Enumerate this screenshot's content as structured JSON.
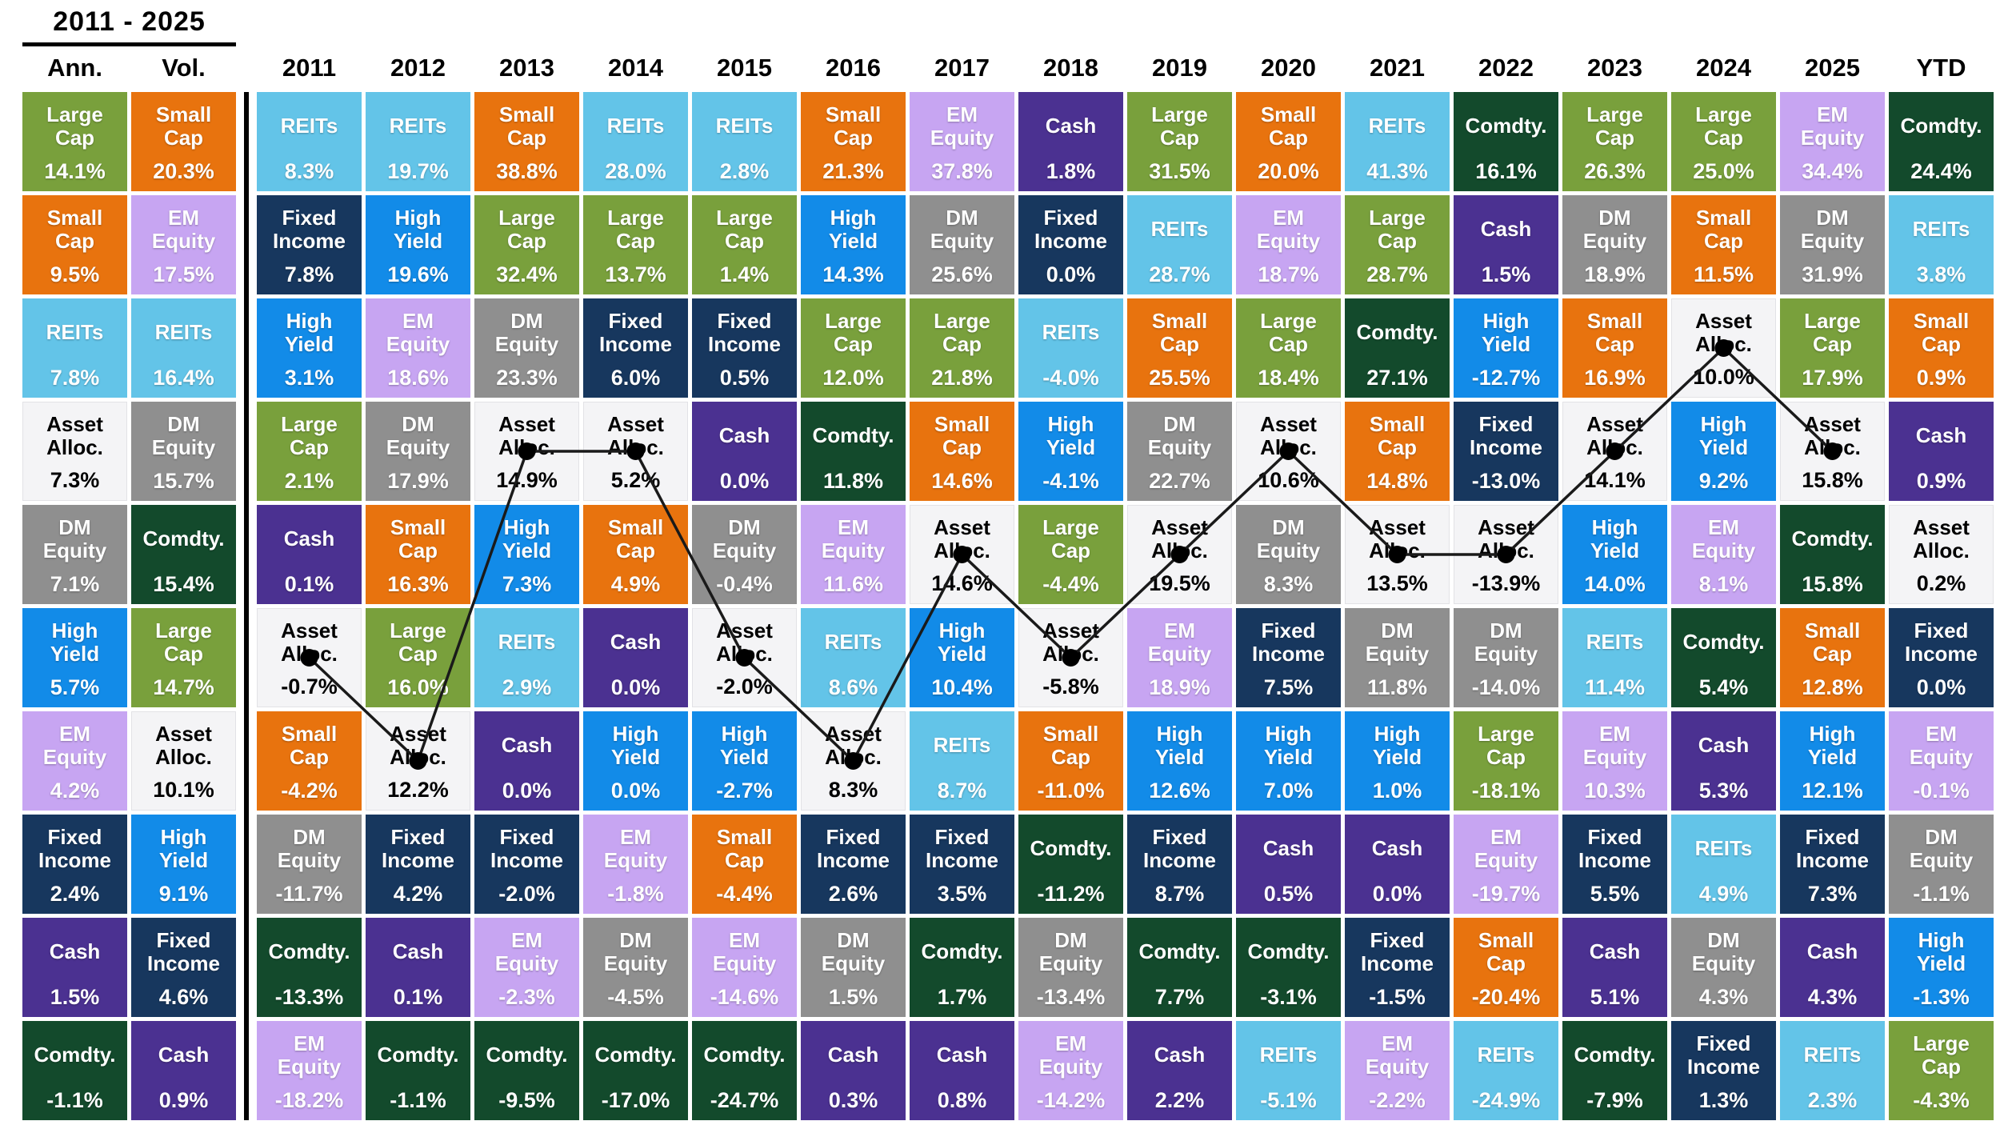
{
  "chart_data": {
    "type": "table",
    "subtype": "asset-class-returns-quilt",
    "title": "2011 - 2025",
    "grid": "off",
    "legend_position": "none",
    "asset_classes": {
      "large_cap": {
        "label": "Large Cap",
        "color": "#79A03C",
        "text": "#FFFFFF"
      },
      "small_cap": {
        "label": "Small Cap",
        "color": "#E8730E",
        "text": "#FFFFFF"
      },
      "reits": {
        "label": "REITs",
        "color": "#63C4E8",
        "text": "#FFFFFF"
      },
      "em_equity": {
        "label": "EM Equity",
        "color": "#C7A5F2",
        "text": "#FFFFFF"
      },
      "dm_equity": {
        "label": "DM Equity",
        "color": "#8F8F8F",
        "text": "#FFFFFF"
      },
      "comdty": {
        "label": "Comdty.",
        "color": "#134A2C",
        "text": "#FFFFFF"
      },
      "fixed_income": {
        "label": "Fixed Income",
        "color": "#17375E",
        "text": "#FFFFFF"
      },
      "high_yield": {
        "label": "High Yield",
        "color": "#128BE8",
        "text": "#FFFFFF"
      },
      "cash": {
        "label": "Cash",
        "color": "#4B3191",
        "text": "#FFFFFF"
      },
      "asset_alloc": {
        "label": "Asset Alloc.",
        "color": "#F4F4F6",
        "text": "#000000"
      }
    },
    "columns": [
      {
        "key": "ann",
        "header": "Ann.",
        "dot": false,
        "cells": [
          [
            "large_cap",
            "14.1%"
          ],
          [
            "small_cap",
            "9.5%"
          ],
          [
            "reits",
            "7.8%"
          ],
          [
            "asset_alloc",
            "7.3%"
          ],
          [
            "dm_equity",
            "7.1%"
          ],
          [
            "high_yield",
            "5.7%"
          ],
          [
            "em_equity",
            "4.2%"
          ],
          [
            "fixed_income",
            "2.4%"
          ],
          [
            "cash",
            "1.5%"
          ],
          [
            "comdty",
            "-1.1%"
          ]
        ]
      },
      {
        "key": "vol",
        "header": "Vol.",
        "dot": false,
        "cells": [
          [
            "small_cap",
            "20.3%"
          ],
          [
            "em_equity",
            "17.5%"
          ],
          [
            "reits",
            "16.4%"
          ],
          [
            "dm_equity",
            "15.7%"
          ],
          [
            "comdty",
            "15.4%"
          ],
          [
            "large_cap",
            "14.7%"
          ],
          [
            "asset_alloc",
            "10.1%"
          ],
          [
            "high_yield",
            "9.1%"
          ],
          [
            "fixed_income",
            "4.6%"
          ],
          [
            "cash",
            "0.9%"
          ]
        ]
      },
      {
        "key": "2011",
        "header": "2011",
        "dot": true,
        "cells": [
          [
            "reits",
            "8.3%"
          ],
          [
            "fixed_income",
            "7.8%"
          ],
          [
            "high_yield",
            "3.1%"
          ],
          [
            "large_cap",
            "2.1%"
          ],
          [
            "cash",
            "0.1%"
          ],
          [
            "asset_alloc",
            "-0.7%"
          ],
          [
            "small_cap",
            "-4.2%"
          ],
          [
            "dm_equity",
            "-11.7%"
          ],
          [
            "comdty",
            "-13.3%"
          ],
          [
            "em_equity",
            "-18.2%"
          ]
        ]
      },
      {
        "key": "2012",
        "header": "2012",
        "dot": true,
        "cells": [
          [
            "reits",
            "19.7%"
          ],
          [
            "high_yield",
            "19.6%"
          ],
          [
            "em_equity",
            "18.6%"
          ],
          [
            "dm_equity",
            "17.9%"
          ],
          [
            "small_cap",
            "16.3%"
          ],
          [
            "large_cap",
            "16.0%"
          ],
          [
            "asset_alloc",
            "12.2%"
          ],
          [
            "fixed_income",
            "4.2%"
          ],
          [
            "cash",
            "0.1%"
          ],
          [
            "comdty",
            "-1.1%"
          ]
        ]
      },
      {
        "key": "2013",
        "header": "2013",
        "dot": true,
        "cells": [
          [
            "small_cap",
            "38.8%"
          ],
          [
            "large_cap",
            "32.4%"
          ],
          [
            "dm_equity",
            "23.3%"
          ],
          [
            "asset_alloc",
            "14.9%"
          ],
          [
            "high_yield",
            "7.3%"
          ],
          [
            "reits",
            "2.9%"
          ],
          [
            "cash",
            "0.0%"
          ],
          [
            "fixed_income",
            "-2.0%"
          ],
          [
            "em_equity",
            "-2.3%"
          ],
          [
            "comdty",
            "-9.5%"
          ]
        ]
      },
      {
        "key": "2014",
        "header": "2014",
        "dot": true,
        "cells": [
          [
            "reits",
            "28.0%"
          ],
          [
            "large_cap",
            "13.7%"
          ],
          [
            "fixed_income",
            "6.0%"
          ],
          [
            "asset_alloc",
            "5.2%"
          ],
          [
            "small_cap",
            "4.9%"
          ],
          [
            "cash",
            "0.0%"
          ],
          [
            "high_yield",
            "0.0%"
          ],
          [
            "em_equity",
            "-1.8%"
          ],
          [
            "dm_equity",
            "-4.5%"
          ],
          [
            "comdty",
            "-17.0%"
          ]
        ]
      },
      {
        "key": "2015",
        "header": "2015",
        "dot": true,
        "cells": [
          [
            "reits",
            "2.8%"
          ],
          [
            "large_cap",
            "1.4%"
          ],
          [
            "fixed_income",
            "0.5%"
          ],
          [
            "cash",
            "0.0%"
          ],
          [
            "dm_equity",
            "-0.4%"
          ],
          [
            "asset_alloc",
            "-2.0%"
          ],
          [
            "high_yield",
            "-2.7%"
          ],
          [
            "small_cap",
            "-4.4%"
          ],
          [
            "em_equity",
            "-14.6%"
          ],
          [
            "comdty",
            "-24.7%"
          ]
        ]
      },
      {
        "key": "2016",
        "header": "2016",
        "dot": true,
        "cells": [
          [
            "small_cap",
            "21.3%"
          ],
          [
            "high_yield",
            "14.3%"
          ],
          [
            "large_cap",
            "12.0%"
          ],
          [
            "comdty",
            "11.8%"
          ],
          [
            "em_equity",
            "11.6%"
          ],
          [
            "reits",
            "8.6%"
          ],
          [
            "asset_alloc",
            "8.3%"
          ],
          [
            "fixed_income",
            "2.6%"
          ],
          [
            "dm_equity",
            "1.5%"
          ],
          [
            "cash",
            "0.3%"
          ]
        ]
      },
      {
        "key": "2017",
        "header": "2017",
        "dot": true,
        "cells": [
          [
            "em_equity",
            "37.8%"
          ],
          [
            "dm_equity",
            "25.6%"
          ],
          [
            "large_cap",
            "21.8%"
          ],
          [
            "small_cap",
            "14.6%"
          ],
          [
            "asset_alloc",
            "14.6%"
          ],
          [
            "high_yield",
            "10.4%"
          ],
          [
            "reits",
            "8.7%"
          ],
          [
            "fixed_income",
            "3.5%"
          ],
          [
            "comdty",
            "1.7%"
          ],
          [
            "cash",
            "0.8%"
          ]
        ]
      },
      {
        "key": "2018",
        "header": "2018",
        "dot": true,
        "cells": [
          [
            "cash",
            "1.8%"
          ],
          [
            "fixed_income",
            "0.0%"
          ],
          [
            "reits",
            "-4.0%"
          ],
          [
            "high_yield",
            "-4.1%"
          ],
          [
            "large_cap",
            "-4.4%"
          ],
          [
            "asset_alloc",
            "-5.8%"
          ],
          [
            "small_cap",
            "-11.0%"
          ],
          [
            "comdty",
            "-11.2%"
          ],
          [
            "dm_equity",
            "-13.4%"
          ],
          [
            "em_equity",
            "-14.2%"
          ]
        ]
      },
      {
        "key": "2019",
        "header": "2019",
        "dot": true,
        "cells": [
          [
            "large_cap",
            "31.5%"
          ],
          [
            "reits",
            "28.7%"
          ],
          [
            "small_cap",
            "25.5%"
          ],
          [
            "dm_equity",
            "22.7%"
          ],
          [
            "asset_alloc",
            "19.5%"
          ],
          [
            "em_equity",
            "18.9%"
          ],
          [
            "high_yield",
            "12.6%"
          ],
          [
            "fixed_income",
            "8.7%"
          ],
          [
            "comdty",
            "7.7%"
          ],
          [
            "cash",
            "2.2%"
          ]
        ]
      },
      {
        "key": "2020",
        "header": "2020",
        "dot": true,
        "cells": [
          [
            "small_cap",
            "20.0%"
          ],
          [
            "em_equity",
            "18.7%"
          ],
          [
            "large_cap",
            "18.4%"
          ],
          [
            "asset_alloc",
            "10.6%"
          ],
          [
            "dm_equity",
            "8.3%"
          ],
          [
            "fixed_income",
            "7.5%"
          ],
          [
            "high_yield",
            "7.0%"
          ],
          [
            "cash",
            "0.5%"
          ],
          [
            "comdty",
            "-3.1%"
          ],
          [
            "reits",
            "-5.1%"
          ]
        ]
      },
      {
        "key": "2021",
        "header": "2021",
        "dot": true,
        "cells": [
          [
            "reits",
            "41.3%"
          ],
          [
            "large_cap",
            "28.7%"
          ],
          [
            "comdty",
            "27.1%"
          ],
          [
            "small_cap",
            "14.8%"
          ],
          [
            "asset_alloc",
            "13.5%"
          ],
          [
            "dm_equity",
            "11.8%"
          ],
          [
            "high_yield",
            "1.0%"
          ],
          [
            "cash",
            "0.0%"
          ],
          [
            "fixed_income",
            "-1.5%"
          ],
          [
            "em_equity",
            "-2.2%"
          ]
        ]
      },
      {
        "key": "2022",
        "header": "2022",
        "dot": true,
        "cells": [
          [
            "comdty",
            "16.1%"
          ],
          [
            "cash",
            "1.5%"
          ],
          [
            "high_yield",
            "-12.7%"
          ],
          [
            "fixed_income",
            "-13.0%"
          ],
          [
            "asset_alloc",
            "-13.9%"
          ],
          [
            "dm_equity",
            "-14.0%"
          ],
          [
            "large_cap",
            "-18.1%"
          ],
          [
            "em_equity",
            "-19.7%"
          ],
          [
            "small_cap",
            "-20.4%"
          ],
          [
            "reits",
            "-24.9%"
          ]
        ]
      },
      {
        "key": "2023",
        "header": "2023",
        "dot": true,
        "cells": [
          [
            "large_cap",
            "26.3%"
          ],
          [
            "dm_equity",
            "18.9%"
          ],
          [
            "small_cap",
            "16.9%"
          ],
          [
            "asset_alloc",
            "14.1%"
          ],
          [
            "high_yield",
            "14.0%"
          ],
          [
            "reits",
            "11.4%"
          ],
          [
            "em_equity",
            "10.3%"
          ],
          [
            "fixed_income",
            "5.5%"
          ],
          [
            "cash",
            "5.1%"
          ],
          [
            "comdty",
            "-7.9%"
          ]
        ]
      },
      {
        "key": "2024",
        "header": "2024",
        "dot": true,
        "cells": [
          [
            "large_cap",
            "25.0%"
          ],
          [
            "small_cap",
            "11.5%"
          ],
          [
            "asset_alloc",
            "10.0%"
          ],
          [
            "high_yield",
            "9.2%"
          ],
          [
            "em_equity",
            "8.1%"
          ],
          [
            "comdty",
            "5.4%"
          ],
          [
            "cash",
            "5.3%"
          ],
          [
            "reits",
            "4.9%"
          ],
          [
            "dm_equity",
            "4.3%"
          ],
          [
            "fixed_income",
            "1.3%"
          ]
        ]
      },
      {
        "key": "2025",
        "header": "2025",
        "dot": true,
        "cells": [
          [
            "em_equity",
            "34.4%"
          ],
          [
            "dm_equity",
            "31.9%"
          ],
          [
            "large_cap",
            "17.9%"
          ],
          [
            "asset_alloc",
            "15.8%"
          ],
          [
            "comdty",
            "15.8%"
          ],
          [
            "small_cap",
            "12.8%"
          ],
          [
            "high_yield",
            "12.1%"
          ],
          [
            "fixed_income",
            "7.3%"
          ],
          [
            "cash",
            "4.3%"
          ],
          [
            "reits",
            "2.3%"
          ]
        ]
      },
      {
        "key": "ytd",
        "header": "YTD",
        "dot": false,
        "cells": [
          [
            "comdty",
            "24.4%"
          ],
          [
            "reits",
            "3.8%"
          ],
          [
            "small_cap",
            "0.9%"
          ],
          [
            "cash",
            "0.9%"
          ],
          [
            "asset_alloc",
            "0.2%"
          ],
          [
            "fixed_income",
            "0.0%"
          ],
          [
            "em_equity",
            "-0.1%"
          ],
          [
            "dm_equity",
            "-1.1%"
          ],
          [
            "high_yield",
            "-1.3%"
          ],
          [
            "large_cap",
            "-4.3%"
          ]
        ]
      }
    ],
    "line_overlay": {
      "tracks_asset": "asset_alloc",
      "label": "Asset Alloc. path across years",
      "color": "#1A1A1A",
      "years": [
        "2011",
        "2012",
        "2013",
        "2014",
        "2015",
        "2016",
        "2017",
        "2018",
        "2019",
        "2020",
        "2021",
        "2022",
        "2023",
        "2024",
        "2025"
      ]
    }
  }
}
